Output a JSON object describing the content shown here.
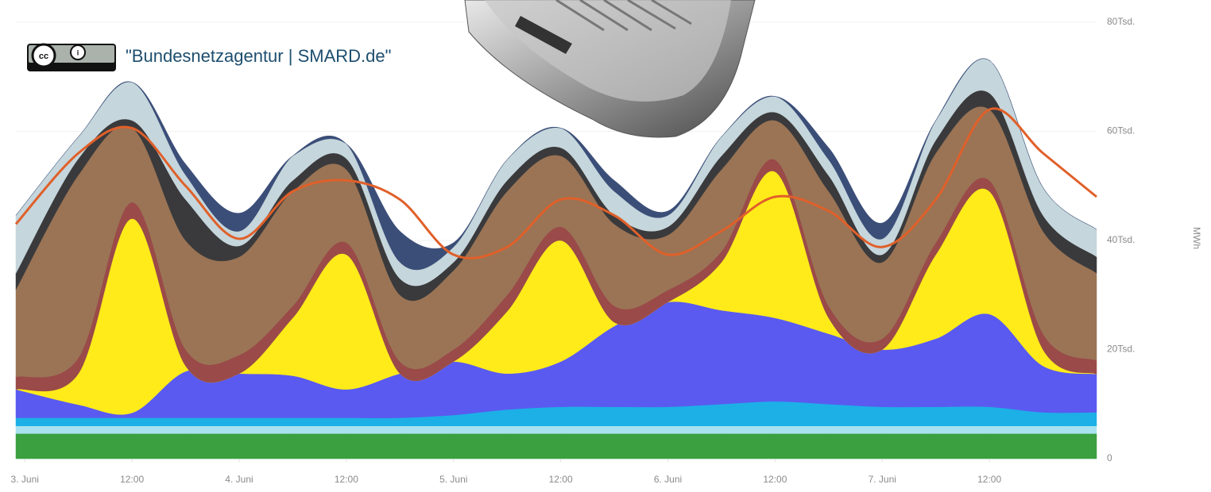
{
  "chart_data": {
    "type": "stacked-area",
    "attribution": "\"Bundesnetzagentur | SMARD.de\"",
    "ylabel": "MWh",
    "x": [
      -1,
      6,
      12,
      18,
      24,
      30,
      36,
      42,
      48,
      54,
      60,
      66,
      72,
      78,
      84,
      90,
      96,
      102,
      108,
      114,
      120
    ],
    "xlim": [
      -1,
      120
    ],
    "xticks": [
      {
        "value": 0,
        "label": "3. Juni"
      },
      {
        "value": 12,
        "label": "12:00"
      },
      {
        "value": 24,
        "label": "4. Juni"
      },
      {
        "value": 36,
        "label": "12:00"
      },
      {
        "value": 48,
        "label": "5. Juni"
      },
      {
        "value": 60,
        "label": "12:00"
      },
      {
        "value": 72,
        "label": "6. Juni"
      },
      {
        "value": 84,
        "label": "12:00"
      },
      {
        "value": 96,
        "label": "7. Juni"
      },
      {
        "value": 108,
        "label": "12:00"
      }
    ],
    "ylim": [
      0,
      80000
    ],
    "yticks": [
      0,
      {
        "value": 20000,
        "label": "20Tsd."
      },
      {
        "value": 40000,
        "label": "40Tsd."
      },
      {
        "value": 60000,
        "label": "60Tsd."
      },
      {
        "value": 80000,
        "label": "80Tsd."
      }
    ],
    "grid": true,
    "series": [
      {
        "color": "#3aa040",
        "values": [
          4600,
          4600,
          4600,
          4600,
          4600,
          4600,
          4600,
          4600,
          4600,
          4600,
          4600,
          4600,
          4600,
          4600,
          4600,
          4600,
          4600,
          4600,
          4600,
          4600,
          4600
        ]
      },
      {
        "color": "#a8e2f0",
        "values": [
          1400,
          1400,
          1400,
          1400,
          1400,
          1400,
          1400,
          1400,
          1400,
          1400,
          1400,
          1400,
          1400,
          1400,
          1400,
          1400,
          1400,
          1400,
          1400,
          1400,
          1400
        ]
      },
      {
        "color": "#1cb0e6",
        "values": [
          1500,
          1500,
          1500,
          1500,
          1500,
          1500,
          1500,
          1500,
          2000,
          3000,
          3500,
          3500,
          3500,
          4000,
          4500,
          4000,
          3500,
          3500,
          3500,
          2500,
          2500
        ]
      },
      {
        "color": "#5a5af0",
        "values": [
          5200,
          2400,
          900,
          8500,
          8100,
          7700,
          5200,
          8100,
          9800,
          6600,
          8300,
          14800,
          19200,
          17200,
          15300,
          12900,
          10500,
          12500,
          17000,
          8500,
          7000
        ]
      },
      {
        "color": "#ffeb1a",
        "values": [
          0,
          5700,
          35600,
          1000,
          0,
          10600,
          24700,
          0,
          0,
          11400,
          22200,
          700,
          0,
          8800,
          26800,
          2900,
          0,
          15400,
          22500,
          3000,
          0
        ]
      },
      {
        "color": "#9a4a48",
        "values": [
          2300,
          2900,
          3000,
          3000,
          3400,
          2200,
          2200,
          2200,
          2200,
          3000,
          2500,
          3000,
          2200,
          2000,
          2200,
          2200,
          2000,
          2200,
          2000,
          2900,
          2500
        ]
      },
      {
        "color": "#9a7455",
        "values": [
          16000,
          33500,
          13600,
          20000,
          18000,
          21000,
          13400,
          12200,
          14500,
          19000,
          13000,
          15000,
          10100,
          15000,
          7200,
          21000,
          14000,
          16400,
          13000,
          18800,
          16000
        ]
      },
      {
        "color": "#3a3a3c",
        "values": [
          3000,
          3000,
          1400,
          7500,
          2000,
          2000,
          2000,
          3000,
          1500,
          2000,
          1500,
          1600,
          1500,
          2500,
          1500,
          2900,
          1400,
          2400,
          3000,
          2900,
          3000
        ]
      },
      {
        "color": "#c5d6dc",
        "values": [
          10600,
          4000,
          7000,
          4500,
          2700,
          4500,
          2700,
          3000,
          2800,
          3800,
          3600,
          4400,
          2100,
          3500,
          2900,
          2900,
          2900,
          3600,
          6000,
          5100,
          5000
        ]
      },
      {
        "color": "#3b4e78",
        "values": [
          0,
          0,
          0,
          2000,
          3300,
          0,
          0,
          5700,
          800,
          0,
          0,
          2000,
          800,
          0,
          0,
          2200,
          2900,
          0,
          0,
          0,
          0
        ]
      },
      {
        "color": "#e0602a",
        "kind": "line",
        "values": [
          43000,
          56000,
          60600,
          50000,
          40300,
          49000,
          51000,
          47500,
          37400,
          38800,
          47500,
          44600,
          37400,
          41700,
          48000,
          45400,
          38800,
          47500,
          64000,
          56000,
          48000
        ]
      }
    ]
  }
}
